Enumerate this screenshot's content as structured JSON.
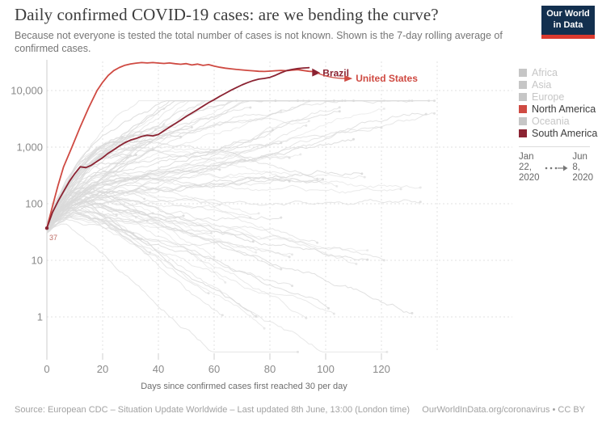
{
  "header": {
    "title": "Daily confirmed COVID-19 cases: are we bending the curve?",
    "subtitle": "Because not everyone is tested the total number of cases is not known. Shown is the 7-day rolling average of confirmed cases.",
    "logo": {
      "line1": "Our World",
      "line2": "in Data"
    }
  },
  "colors": {
    "north_america": "#cf4a42",
    "south_america": "#8b2332",
    "grid": "#e2e2e2",
    "axis": "#cccccc",
    "logo_navy": "#13304f",
    "logo_red": "#dc3a2e"
  },
  "legend": {
    "inactive_color": "#c6c6c6",
    "items": [
      {
        "label": "Africa",
        "active": false
      },
      {
        "label": "Asia",
        "active": false
      },
      {
        "label": "Europe",
        "active": false
      },
      {
        "label": "North America",
        "active": true,
        "color": "#cf4a42"
      },
      {
        "label": "Oceania",
        "active": false
      },
      {
        "label": "South America",
        "active": true,
        "color": "#8b2332"
      }
    ]
  },
  "timeline": {
    "start": [
      "Jan",
      "22,",
      "2020"
    ],
    "end": [
      "Jun",
      "8,",
      "2020"
    ]
  },
  "footer": {
    "source": "Source: European CDC – Situation Update Worldwide – Last updated 8th June, 13:00 (London time)",
    "link": "OurWorldInData.org/coronavirus • CC BY"
  },
  "chart_data": {
    "type": "line",
    "title": "Daily confirmed COVID-19 cases: are we bending the curve?",
    "xlabel": "Days since confirmed cases first reached 30 per day",
    "ylabel": "",
    "y_scale": "log",
    "x_ticks": [
      0,
      20,
      40,
      60,
      80,
      100,
      120
    ],
    "extra_gridline_day": 140,
    "y_ticks": [
      1,
      10,
      100,
      1000,
      10000
    ],
    "y_tick_labels": [
      "1",
      "10",
      "100",
      "1,000",
      "10,000"
    ],
    "start_annotation": "37",
    "grid": true,
    "legend_position": "right",
    "series": [
      {
        "name": "United States",
        "region": "North America",
        "color": "#cf4a42",
        "points": [
          [
            0,
            37
          ],
          [
            2,
            90
          ],
          [
            4,
            210
          ],
          [
            6,
            450
          ],
          [
            9,
            1000
          ],
          [
            12,
            2300
          ],
          [
            15,
            5000
          ],
          [
            18,
            10000
          ],
          [
            20,
            14000
          ],
          [
            22,
            18500
          ],
          [
            24,
            22500
          ],
          [
            26,
            25500
          ],
          [
            28,
            28000
          ],
          [
            30,
            29500
          ],
          [
            32,
            30500
          ],
          [
            34,
            31200
          ],
          [
            36,
            30700
          ],
          [
            38,
            31200
          ],
          [
            40,
            30600
          ],
          [
            42,
            30100
          ],
          [
            44,
            30700
          ],
          [
            46,
            29800
          ],
          [
            48,
            29100
          ],
          [
            50,
            29900
          ],
          [
            52,
            28300
          ],
          [
            54,
            29300
          ],
          [
            56,
            27800
          ],
          [
            58,
            28700
          ],
          [
            60,
            27000
          ],
          [
            62,
            25800
          ],
          [
            64,
            24900
          ],
          [
            66,
            24200
          ],
          [
            68,
            23600
          ],
          [
            70,
            23100
          ],
          [
            72,
            22700
          ],
          [
            74,
            22300
          ],
          [
            76,
            21900
          ],
          [
            78,
            21700
          ],
          [
            80,
            22000
          ],
          [
            82,
            22400
          ],
          [
            84,
            22700
          ],
          [
            86,
            22400
          ],
          [
            88,
            23000
          ],
          [
            90,
            23400
          ],
          [
            92,
            22600
          ],
          [
            94,
            21900
          ],
          [
            96,
            21600
          ]
        ]
      },
      {
        "name": "Brazil",
        "region": "South America",
        "color": "#8b2332",
        "points": [
          [
            0,
            37
          ],
          [
            2,
            70
          ],
          [
            4,
            110
          ],
          [
            6,
            165
          ],
          [
            8,
            245
          ],
          [
            10,
            340
          ],
          [
            12,
            450
          ],
          [
            14,
            435
          ],
          [
            16,
            480
          ],
          [
            18,
            560
          ],
          [
            20,
            650
          ],
          [
            22,
            780
          ],
          [
            24,
            900
          ],
          [
            26,
            1050
          ],
          [
            28,
            1200
          ],
          [
            30,
            1330
          ],
          [
            32,
            1420
          ],
          [
            34,
            1550
          ],
          [
            36,
            1620
          ],
          [
            38,
            1580
          ],
          [
            40,
            1680
          ],
          [
            42,
            1950
          ],
          [
            44,
            2250
          ],
          [
            46,
            2600
          ],
          [
            48,
            3000
          ],
          [
            50,
            3500
          ],
          [
            52,
            4000
          ],
          [
            54,
            4600
          ],
          [
            56,
            5300
          ],
          [
            58,
            6100
          ],
          [
            60,
            6900
          ],
          [
            62,
            7900
          ],
          [
            64,
            8900
          ],
          [
            66,
            10100
          ],
          [
            68,
            11300
          ],
          [
            70,
            12600
          ],
          [
            72,
            13800
          ],
          [
            74,
            15000
          ],
          [
            76,
            15900
          ],
          [
            78,
            16400
          ],
          [
            80,
            17100
          ],
          [
            82,
            18600
          ],
          [
            84,
            20600
          ],
          [
            86,
            22500
          ],
          [
            88,
            23600
          ],
          [
            90,
            24500
          ],
          [
            92,
            25000
          ],
          [
            94,
            25400
          ]
        ]
      }
    ],
    "background_series": {
      "count": 96,
      "color": "#dadada",
      "description": "unhighlighted countries (gray 7-day rolling average lines)"
    }
  }
}
